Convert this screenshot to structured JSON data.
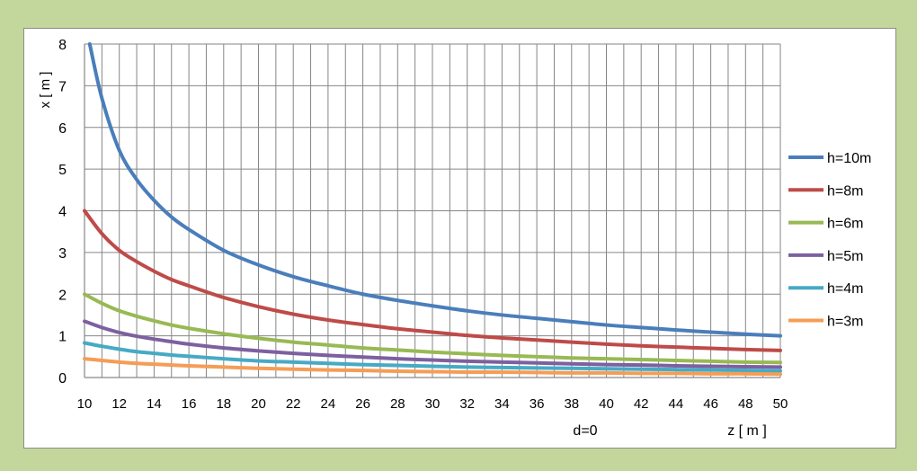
{
  "chart_data": {
    "type": "line",
    "xlabel": "z [ m ]",
    "ylabel": "x [ m ]",
    "annotation": "d=0",
    "xlim": [
      10,
      50
    ],
    "ylim": [
      0,
      8
    ],
    "x_ticks": [
      10,
      12,
      14,
      16,
      18,
      20,
      22,
      24,
      26,
      28,
      30,
      32,
      34,
      36,
      38,
      40,
      42,
      44,
      46,
      48,
      50
    ],
    "y_ticks": [
      0,
      1,
      2,
      3,
      4,
      5,
      6,
      7,
      8
    ],
    "x_gridlines": [
      10,
      11,
      12,
      13,
      14,
      15,
      16,
      17,
      18,
      19,
      20,
      21,
      22,
      23,
      24,
      25,
      26,
      27,
      28,
      29,
      30,
      31,
      32,
      33,
      34,
      35,
      36,
      37,
      38,
      39,
      40,
      41,
      42,
      43,
      44,
      45,
      46,
      47,
      48,
      49,
      50
    ],
    "grid": true,
    "legend_position": "right",
    "series": [
      {
        "name": "h=10m",
        "color": "#4a7ebb",
        "x": [
          10.3,
          11,
          12,
          13,
          14,
          15,
          16,
          18,
          20,
          22,
          24,
          26,
          28,
          30,
          32,
          34,
          36,
          38,
          40,
          42,
          44,
          46,
          48,
          50
        ],
        "y": [
          8,
          6.7,
          5.45,
          4.75,
          4.25,
          3.85,
          3.55,
          3.05,
          2.7,
          2.42,
          2.2,
          2.0,
          1.85,
          1.72,
          1.6,
          1.5,
          1.42,
          1.34,
          1.26,
          1.2,
          1.14,
          1.09,
          1.04,
          1.0
        ]
      },
      {
        "name": "h=8m",
        "color": "#be4b48",
        "x": [
          10,
          11,
          12,
          13,
          14,
          15,
          16,
          18,
          20,
          22,
          24,
          26,
          28,
          30,
          32,
          34,
          36,
          38,
          40,
          42,
          44,
          46,
          48,
          50
        ],
        "y": [
          4.0,
          3.45,
          3.05,
          2.78,
          2.55,
          2.35,
          2.2,
          1.92,
          1.7,
          1.52,
          1.38,
          1.27,
          1.17,
          1.09,
          1.01,
          0.95,
          0.9,
          0.85,
          0.8,
          0.76,
          0.73,
          0.7,
          0.67,
          0.65
        ]
      },
      {
        "name": "h=6m",
        "color": "#98b954",
        "x": [
          10,
          11,
          12,
          13,
          14,
          15,
          16,
          18,
          20,
          22,
          24,
          26,
          28,
          30,
          32,
          34,
          36,
          38,
          40,
          42,
          44,
          46,
          48,
          50
        ],
        "y": [
          2.0,
          1.78,
          1.6,
          1.47,
          1.36,
          1.26,
          1.18,
          1.05,
          0.94,
          0.85,
          0.78,
          0.71,
          0.66,
          0.61,
          0.57,
          0.53,
          0.5,
          0.47,
          0.45,
          0.43,
          0.41,
          0.39,
          0.37,
          0.36
        ]
      },
      {
        "name": "h=5m",
        "color": "#7d60a0",
        "x": [
          10,
          11,
          12,
          13,
          14,
          15,
          16,
          18,
          20,
          22,
          24,
          26,
          28,
          30,
          32,
          34,
          36,
          38,
          40,
          42,
          44,
          46,
          48,
          50
        ],
        "y": [
          1.35,
          1.2,
          1.08,
          0.99,
          0.92,
          0.86,
          0.8,
          0.71,
          0.64,
          0.58,
          0.53,
          0.49,
          0.45,
          0.42,
          0.39,
          0.37,
          0.35,
          0.33,
          0.31,
          0.3,
          0.28,
          0.27,
          0.26,
          0.25
        ]
      },
      {
        "name": "h=4m",
        "color": "#46aac5",
        "x": [
          10,
          11,
          12,
          13,
          14,
          15,
          16,
          18,
          20,
          22,
          24,
          26,
          28,
          30,
          32,
          34,
          36,
          38,
          40,
          42,
          44,
          46,
          48,
          50
        ],
        "y": [
          0.83,
          0.75,
          0.68,
          0.62,
          0.58,
          0.54,
          0.51,
          0.45,
          0.4,
          0.37,
          0.34,
          0.31,
          0.29,
          0.27,
          0.25,
          0.24,
          0.23,
          0.22,
          0.21,
          0.2,
          0.19,
          0.18,
          0.17,
          0.16
        ]
      },
      {
        "name": "h=3m",
        "color": "#f59d56",
        "x": [
          10,
          11,
          12,
          13,
          14,
          15,
          16,
          18,
          20,
          22,
          24,
          26,
          28,
          30,
          32,
          34,
          36,
          38,
          40,
          42,
          44,
          46,
          48,
          50
        ],
        "y": [
          0.45,
          0.41,
          0.37,
          0.34,
          0.32,
          0.3,
          0.28,
          0.25,
          0.22,
          0.2,
          0.18,
          0.17,
          0.15,
          0.14,
          0.13,
          0.13,
          0.12,
          0.11,
          0.11,
          0.1,
          0.1,
          0.09,
          0.09,
          0.08
        ]
      }
    ]
  }
}
